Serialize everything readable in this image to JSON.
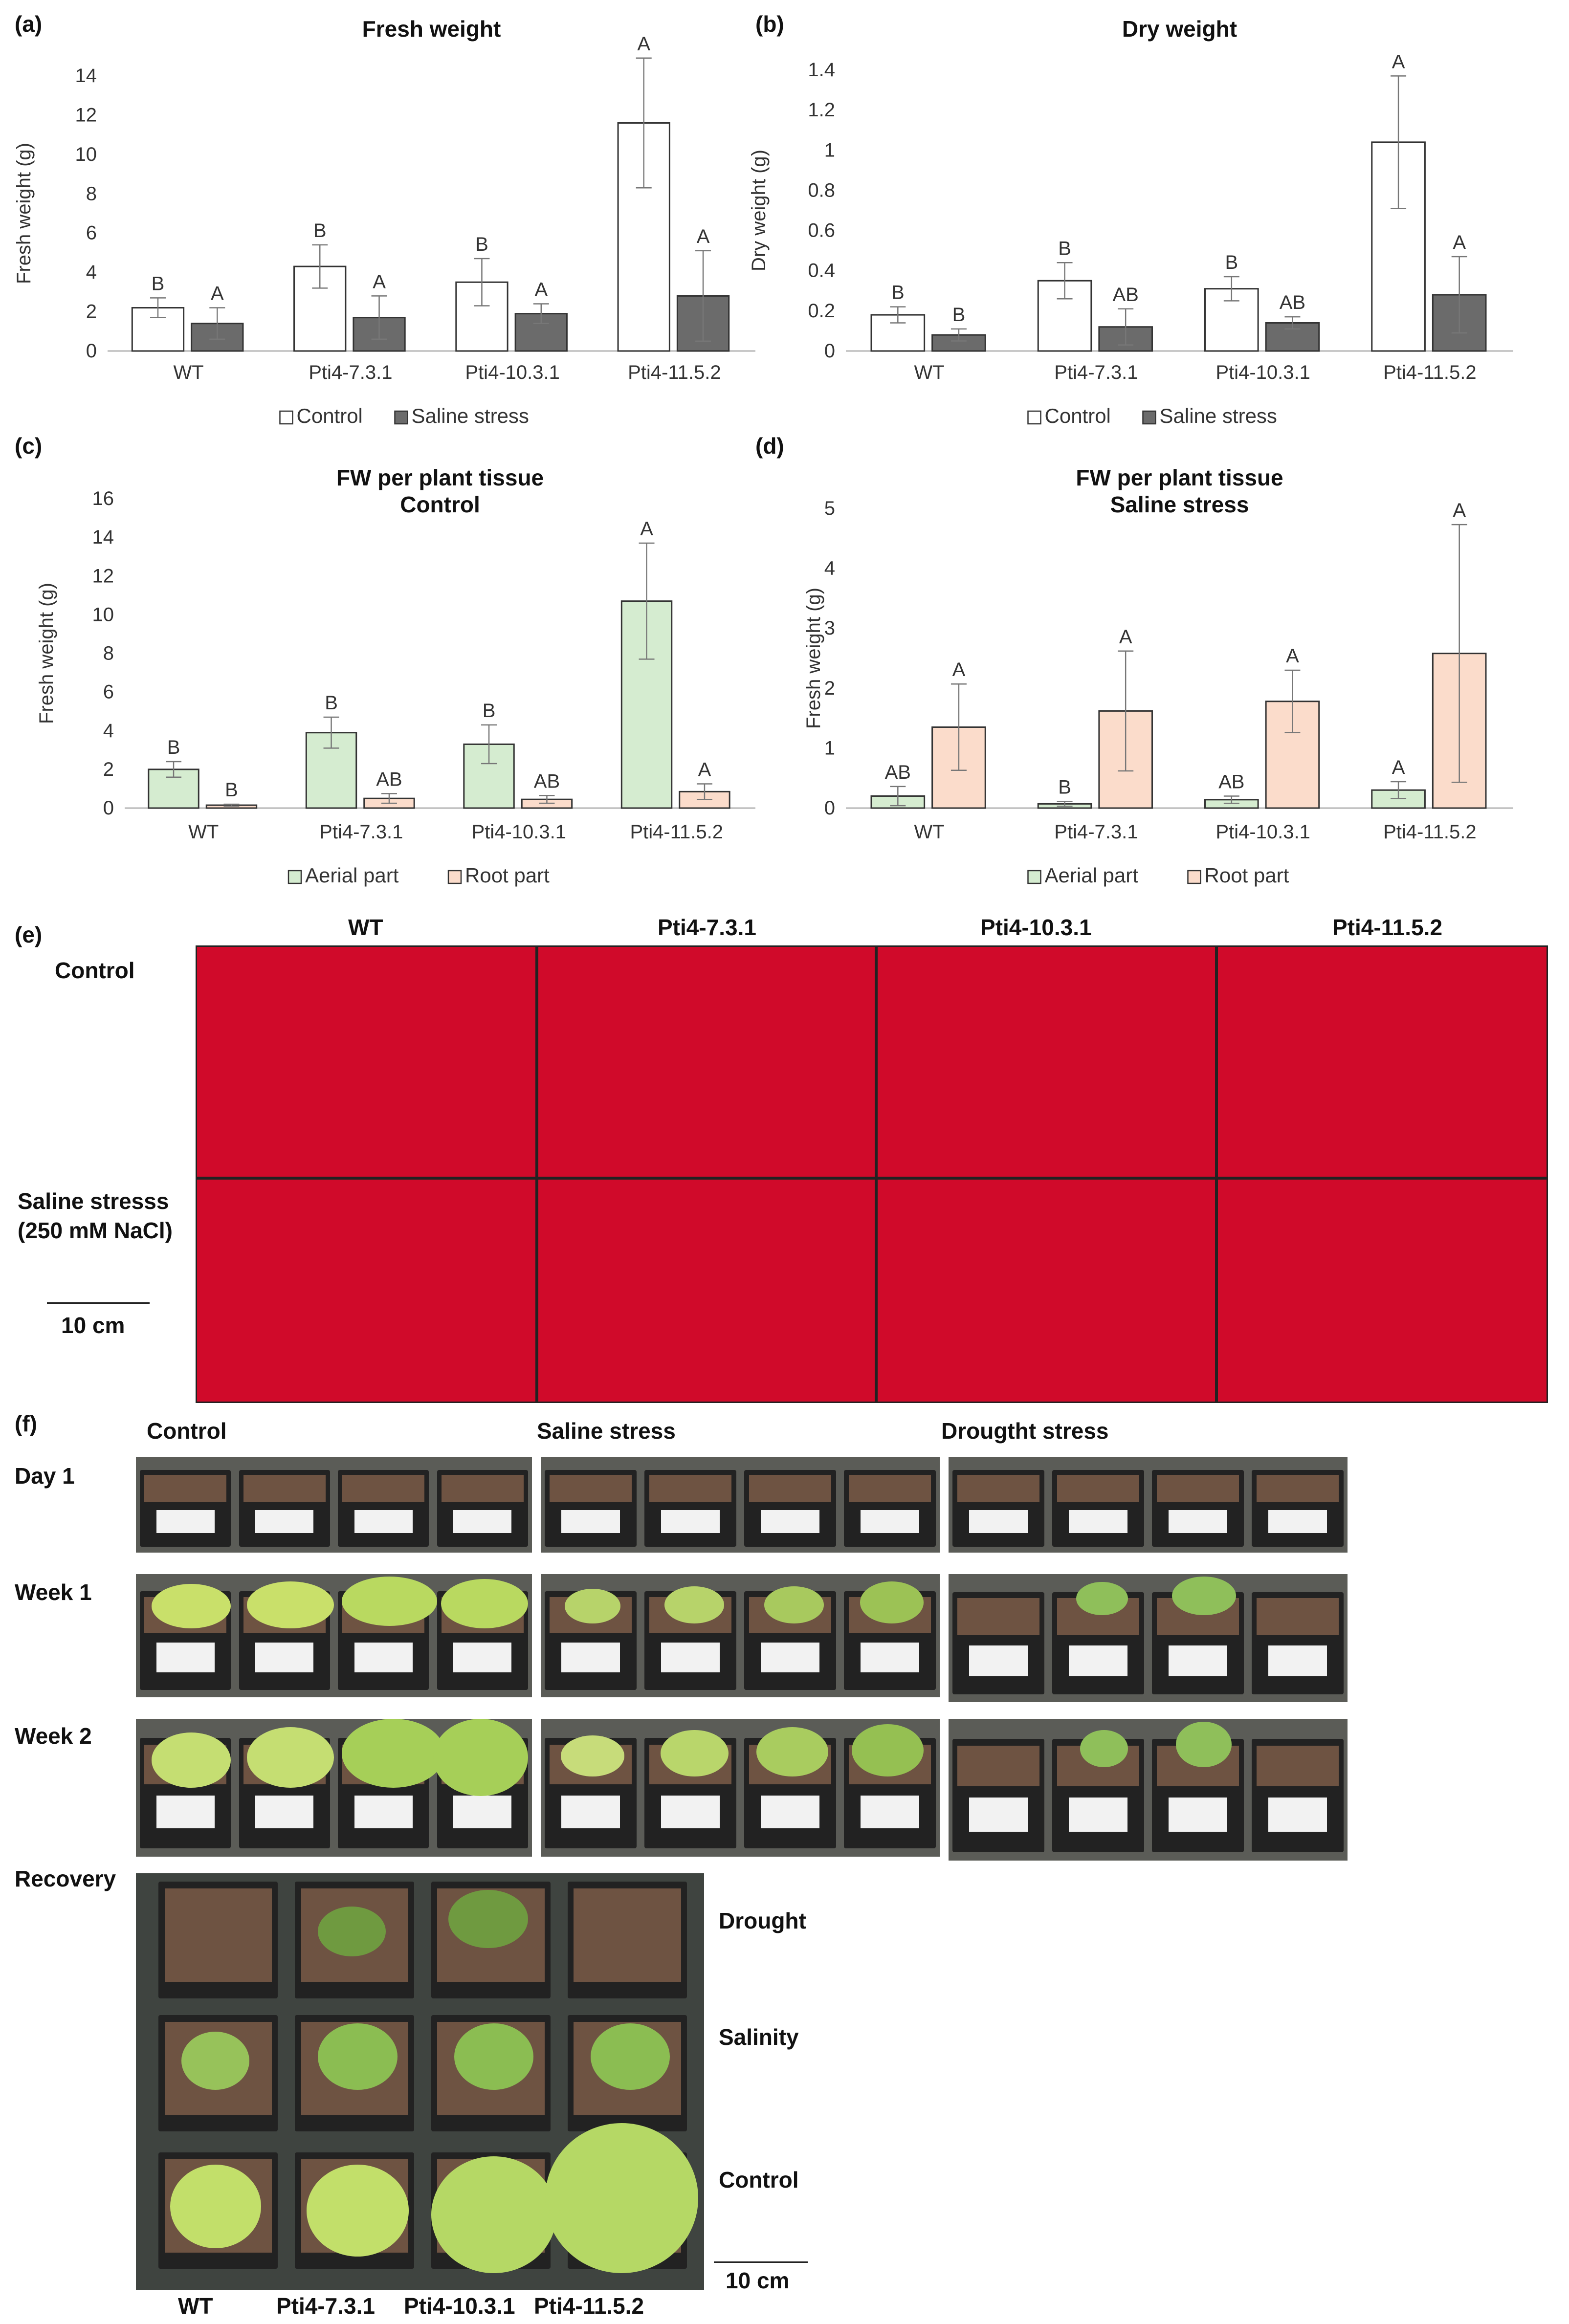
{
  "panels": {
    "a": "(a)",
    "b": "(b)",
    "c": "(c)",
    "d": "(d)",
    "e": "(e)",
    "f": "(f)"
  },
  "chart_data": [
    {
      "type": "bar",
      "id": "a",
      "title": "Fresh weight",
      "ylabel": "Fresh weight (g)",
      "ylim": [
        0,
        14
      ],
      "yticks": [
        0,
        2,
        4,
        6,
        8,
        10,
        12,
        14
      ],
      "categories": [
        "WT",
        "Pti4-7.3.1",
        "Pti4-10.3.1",
        "Pti4-11.5.2"
      ],
      "series": [
        {
          "name": "Control",
          "color": "#ffffff",
          "values": [
            2.2,
            4.3,
            3.5,
            11.6
          ],
          "errors": [
            0.5,
            1.1,
            1.2,
            3.3
          ],
          "letters": [
            "B",
            "B",
            "B",
            "A"
          ]
        },
        {
          "name": "Saline stress",
          "color": "#6b6b6b",
          "values": [
            1.4,
            1.7,
            1.9,
            2.8
          ],
          "errors": [
            0.8,
            1.1,
            0.5,
            2.3
          ],
          "letters": [
            "A",
            "A",
            "A",
            "A"
          ]
        }
      ]
    },
    {
      "type": "bar",
      "id": "b",
      "title": "Dry weight",
      "ylabel": "Dry weight (g)",
      "ylim": [
        0,
        1.4
      ],
      "yticks": [
        0,
        0.2,
        0.4,
        0.6,
        0.8,
        1,
        1.2,
        1.4
      ],
      "categories": [
        "WT",
        "Pti4-7.3.1",
        "Pti4-10.3.1",
        "Pti4-11.5.2"
      ],
      "series": [
        {
          "name": "Control",
          "color": "#ffffff",
          "values": [
            0.18,
            0.35,
            0.31,
            1.04
          ],
          "errors": [
            0.04,
            0.09,
            0.06,
            0.33
          ],
          "letters": [
            "B",
            "B",
            "B",
            "A"
          ]
        },
        {
          "name": "Saline stress",
          "color": "#6b6b6b",
          "values": [
            0.08,
            0.12,
            0.14,
            0.28
          ],
          "errors": [
            0.03,
            0.09,
            0.03,
            0.19
          ],
          "letters": [
            "B",
            "AB",
            "AB",
            "A"
          ]
        }
      ]
    },
    {
      "type": "bar",
      "id": "c",
      "title": "FW per plant tissue",
      "subtitle": "Control",
      "ylabel": "Fresh weight (g)",
      "ylim": [
        0,
        16
      ],
      "yticks": [
        0,
        2,
        4,
        6,
        8,
        10,
        12,
        14,
        16
      ],
      "categories": [
        "WT",
        "Pti4-7.3.1",
        "Pti4-10.3.1",
        "Pti4-11.5.2"
      ],
      "series": [
        {
          "name": "Aerial part",
          "color": "#d5ecd0",
          "values": [
            2.0,
            3.9,
            3.3,
            10.7
          ],
          "errors": [
            0.4,
            0.8,
            1.0,
            3.0
          ],
          "letters": [
            "B",
            "B",
            "B",
            "A"
          ]
        },
        {
          "name": "Root part",
          "color": "#fbdccb",
          "values": [
            0.15,
            0.5,
            0.45,
            0.85
          ],
          "errors": [
            0.05,
            0.25,
            0.2,
            0.4
          ],
          "letters": [
            "B",
            "AB",
            "AB",
            "A"
          ]
        }
      ]
    },
    {
      "type": "bar",
      "id": "d",
      "title": "FW per plant tissue",
      "subtitle": "Saline stress",
      "ylabel": "Fresh weight (g)",
      "ylim": [
        0,
        5
      ],
      "yticks": [
        0,
        1,
        2,
        3,
        4,
        5
      ],
      "categories": [
        "WT",
        "Pti4-7.3.1",
        "Pti4-10.3.1",
        "Pti4-11.5.2"
      ],
      "series": [
        {
          "name": "Aerial part",
          "color": "#d5ecd0",
          "values": [
            0.2,
            0.07,
            0.14,
            0.3
          ],
          "errors": [
            0.16,
            0.04,
            0.06,
            0.14
          ],
          "letters": [
            "AB",
            "B",
            "AB",
            "A"
          ]
        },
        {
          "name": "Root part",
          "color": "#fbdccb",
          "values": [
            1.35,
            1.62,
            1.78,
            2.58
          ],
          "errors": [
            0.72,
            1.0,
            0.52,
            2.15
          ],
          "letters": [
            "A",
            "A",
            "A",
            "A"
          ]
        }
      ]
    }
  ],
  "panel_e": {
    "columns": [
      "WT",
      "Pti4-7.3.1",
      "Pti4-10.3.1",
      "Pti4-11.5.2"
    ],
    "row_control": "Control",
    "row_saline_1": "Saline stresss",
    "row_saline_2": "(250 mM NaCl)",
    "scale": "10 cm"
  },
  "panel_f": {
    "columns": [
      "Control",
      "Saline stress",
      "Drougtht stress"
    ],
    "rows": [
      "Day 1",
      "Week 1",
      "Week 2",
      "Recovery"
    ],
    "recovery_rows": [
      "Drought",
      "Salinity",
      "Control"
    ],
    "recovery_columns": [
      "WT",
      "Pti4-7.3.1",
      "Pti4-10.3.1",
      "Pti4-11.5.2"
    ],
    "scale": "10 cm"
  }
}
